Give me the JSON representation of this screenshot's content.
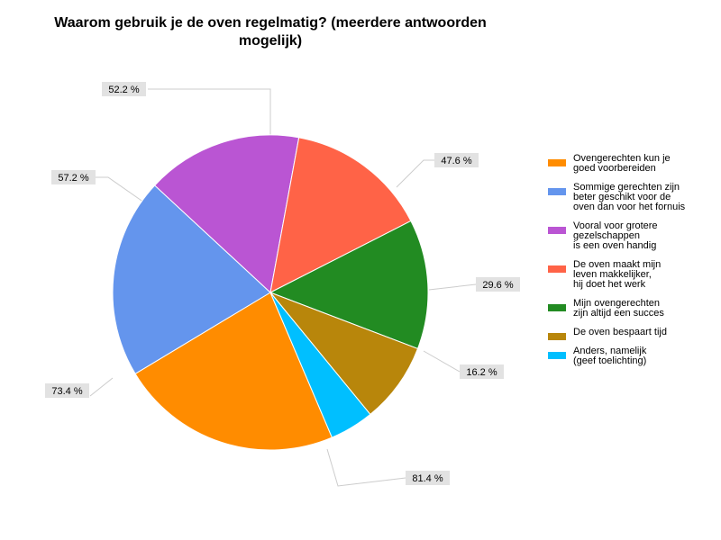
{
  "chart_data": {
    "type": "pie",
    "title": "Waarom gebruik je de oven regelmatig? (meerdere antwoorden mogelijk)",
    "legend_position": "right",
    "slices": [
      {
        "label": "Ovengerechten kun je\ngoed voorbereiden",
        "value": 81.4,
        "display": "81.4 %",
        "color": "#ff8c00"
      },
      {
        "label": "Sommige gerechten zijn\nbeter geschikt voor de\noven dan voor het fornuis",
        "value": 73.4,
        "display": "73.4 %",
        "color": "#6495ed"
      },
      {
        "label": "Vooral voor grotere\ngezelschappen\nis een oven handig",
        "value": 57.2,
        "display": "57.2 %",
        "color": "#ba55d3"
      },
      {
        "label": "De oven maakt mijn\nleven makkelijker,\nhij doet het werk",
        "value": 52.2,
        "display": "52.2 %",
        "color": "#ff6347"
      },
      {
        "label": "Mijn ovengerechten\nzijn altijd een succes",
        "value": 47.6,
        "display": "47.6 %",
        "color": "#228b22"
      },
      {
        "label": "De oven bespaart tijd",
        "value": 29.6,
        "display": "29.6 %",
        "color": "#b8860b"
      },
      {
        "label": "Anders, namelijk\n(geef toelichting)",
        "value": 16.2,
        "display": "16.2 %",
        "color": "#00bfff"
      }
    ]
  }
}
